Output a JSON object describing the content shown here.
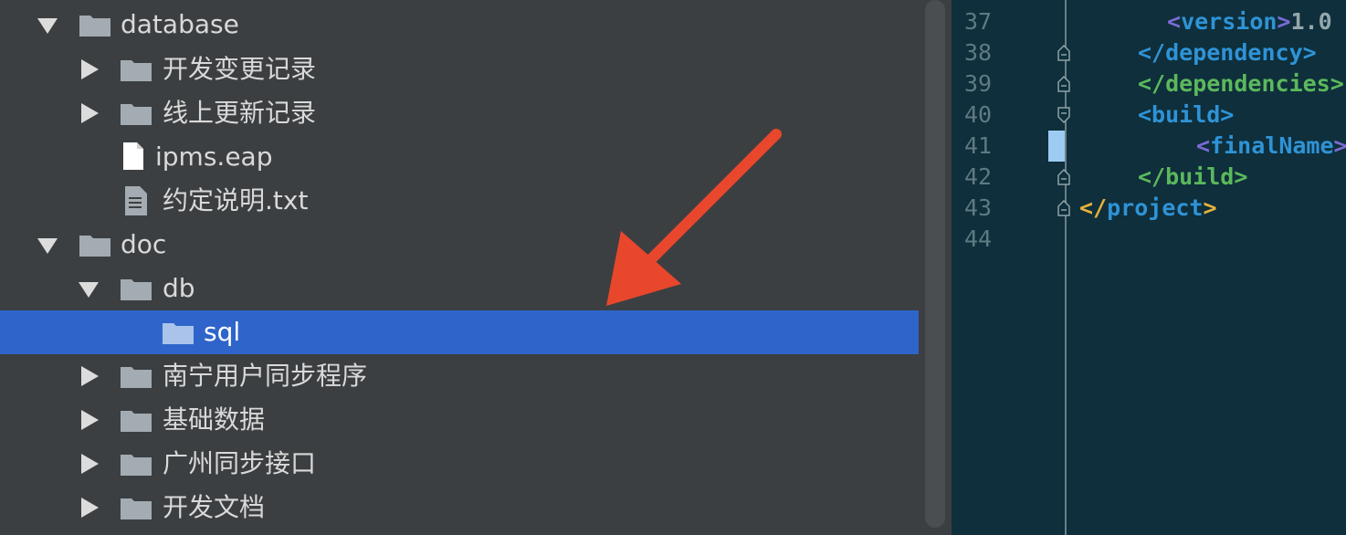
{
  "tree": {
    "items": [
      {
        "label": "database",
        "type": "folder",
        "expanded": true
      },
      {
        "label": "开发变更记录",
        "type": "folder",
        "expanded": false
      },
      {
        "label": "线上更新记录",
        "type": "folder",
        "expanded": false
      },
      {
        "label": "ipms.eap",
        "type": "file"
      },
      {
        "label": "约定说明.txt",
        "type": "text-file"
      },
      {
        "label": "doc",
        "type": "folder",
        "expanded": true
      },
      {
        "label": "db",
        "type": "folder",
        "expanded": true
      },
      {
        "label": "sql",
        "type": "folder",
        "selected": true
      },
      {
        "label": "南宁用户同步程序",
        "type": "folder",
        "expanded": false
      },
      {
        "label": "基础数据",
        "type": "folder",
        "expanded": false
      },
      {
        "label": "广州同步接口",
        "type": "folder",
        "expanded": false
      },
      {
        "label": "开发文档",
        "type": "folder",
        "expanded": false
      }
    ]
  },
  "editor": {
    "line_numbers": [
      "37",
      "38",
      "39",
      "40",
      "41",
      "42",
      "43",
      "44"
    ],
    "lines": {
      "l37_open": "<",
      "l37_tag": "version",
      "l37_close": ">",
      "l37_text": "1.0",
      "l38": "</dependency>",
      "l39": "</dependencies>",
      "l40": "<build>",
      "l41_open": "<",
      "l41_tag": "finalName",
      "l41_close": ">",
      "l42": "</build>",
      "l43_open": "</",
      "l43_tag": "project",
      "l43_close": ">"
    }
  },
  "colors": {
    "selection": "#2f65ca",
    "annotation_arrow": "#e8472c",
    "editor_bg": "#0e2f3b"
  }
}
